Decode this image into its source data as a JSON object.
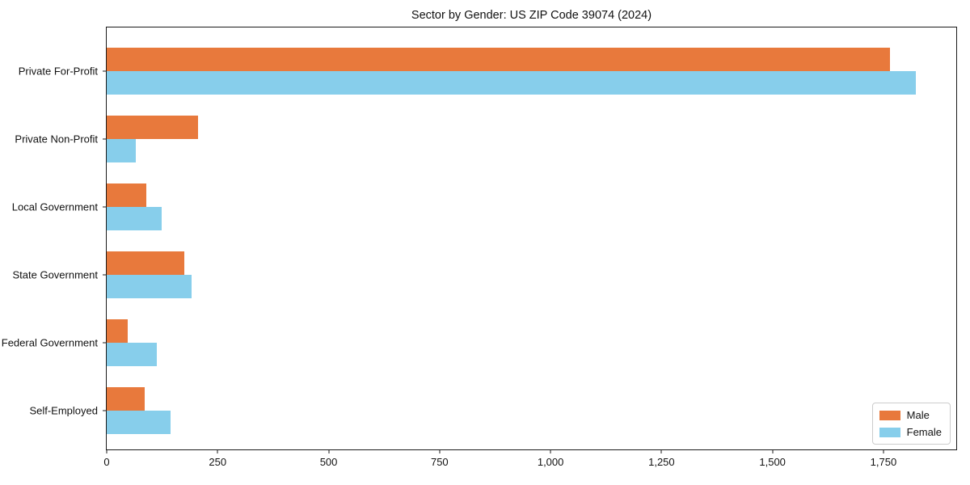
{
  "title": "Sector by Gender: US ZIP Code 39074 (2024)",
  "colors": {
    "male": "#e8793c",
    "female": "#87ceeb",
    "spine": "#1a1a1a",
    "text": "#111111",
    "legend_border": "#cccccc",
    "background": "#ffffff"
  },
  "legend": {
    "position": "lower right",
    "items": [
      {
        "label": "Male",
        "color": "#e8793c"
      },
      {
        "label": "Female",
        "color": "#87ceeb"
      }
    ]
  },
  "chart_data": {
    "type": "bar",
    "orientation": "horizontal",
    "title": "Sector by Gender: US ZIP Code 39074 (2024)",
    "xlabel": "",
    "ylabel": "",
    "grid": false,
    "legend_position": "lower right",
    "categories": [
      "Private For-Profit",
      "Private Non-Profit",
      "Local Government",
      "State Government",
      "Federal Government",
      "Self-Employed"
    ],
    "series": [
      {
        "name": "Male",
        "color": "#e8793c",
        "values": [
          1765,
          205,
          90,
          174,
          48,
          86
        ]
      },
      {
        "name": "Female",
        "color": "#87ceeb",
        "values": [
          1823,
          66,
          124,
          191,
          113,
          144
        ]
      }
    ],
    "xlim": [
      0,
      1914
    ],
    "x_ticks": [
      0,
      250,
      500,
      750,
      1000,
      1250,
      1500,
      1750
    ],
    "x_tick_labels": [
      "0",
      "250",
      "500",
      "750",
      "1,000",
      "1,250",
      "1,500",
      "1,750"
    ]
  }
}
